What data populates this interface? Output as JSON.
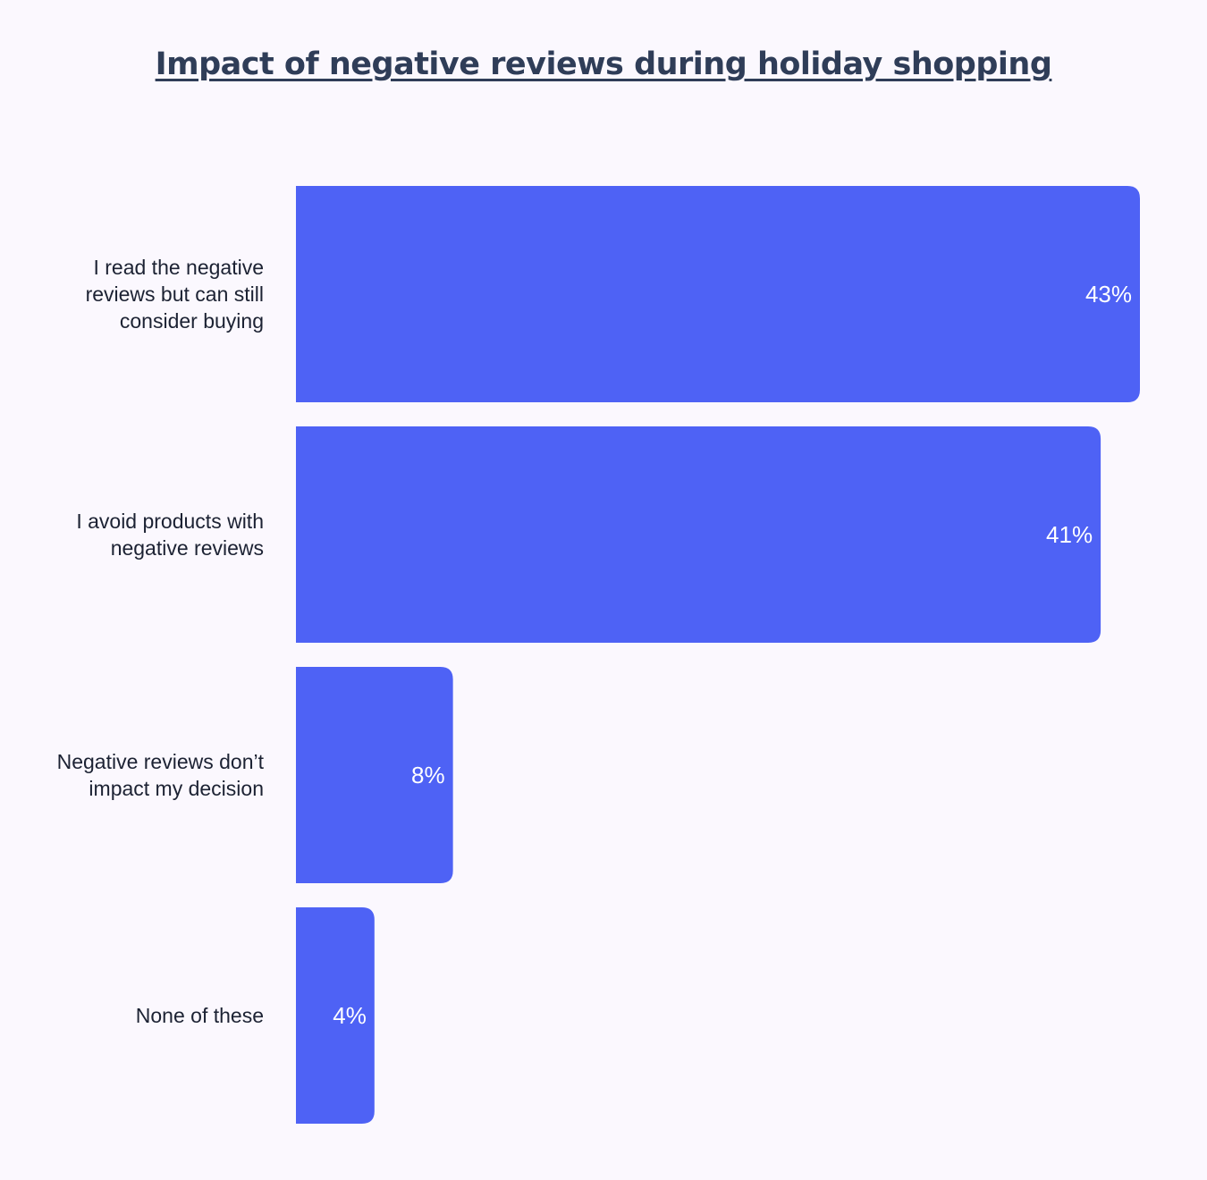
{
  "chart_data": {
    "type": "bar",
    "orientation": "horizontal",
    "title": "Impact of negative reviews during holiday shopping",
    "categories": [
      [
        "I read the negative",
        "reviews but can still",
        "consider buying"
      ],
      [
        "I avoid products with",
        "negative reviews"
      ],
      [
        "Negative reviews don’t",
        "impact my decision"
      ],
      [
        "None of these"
      ]
    ],
    "values": [
      43,
      41,
      8,
      4
    ],
    "value_labels": [
      "43%",
      "41%",
      "8%",
      "4%"
    ],
    "xlim": [
      0,
      43
    ],
    "grid": false,
    "legend": "none",
    "bar_color": "#4e62f5"
  }
}
